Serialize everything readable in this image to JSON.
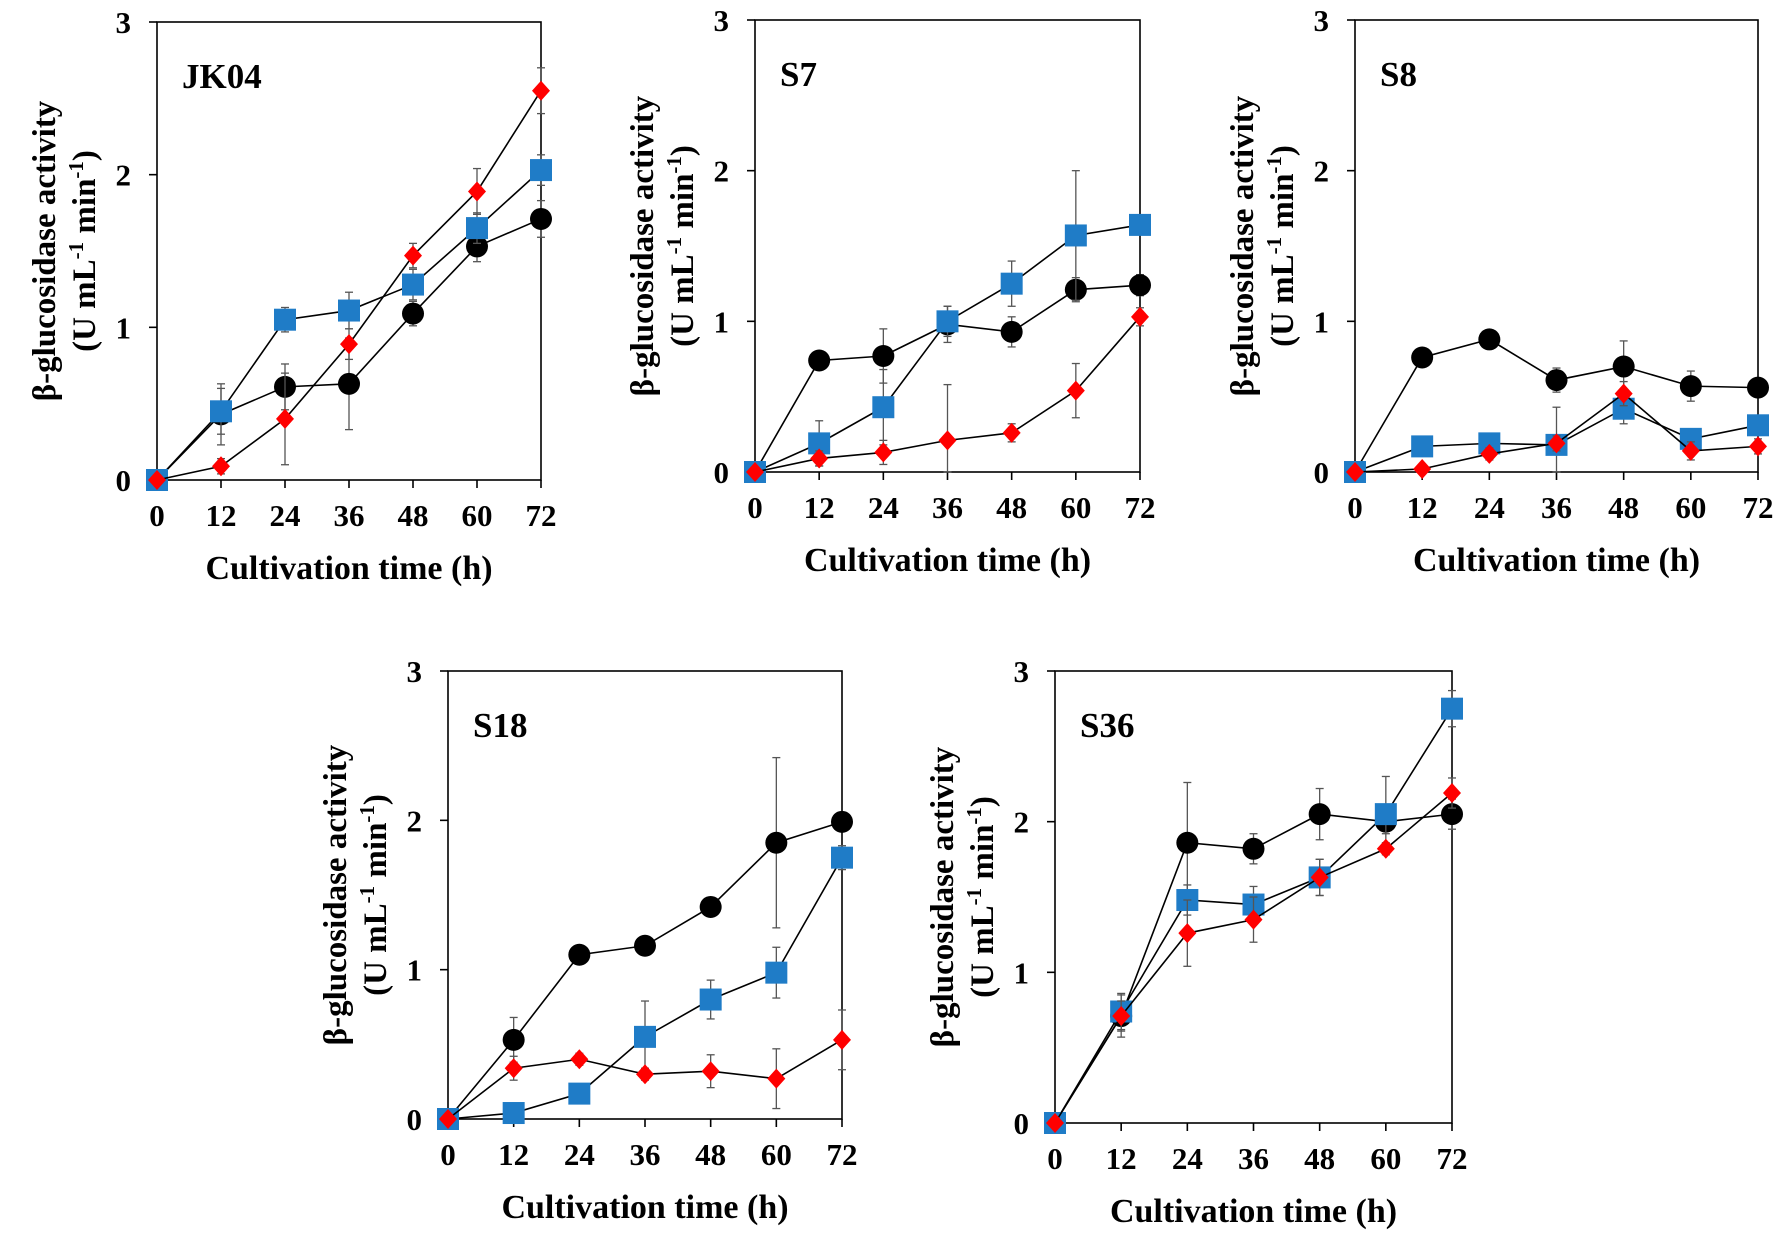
{
  "figure": {
    "y_axis_label_line1": "β-glucosidase activity",
    "y_axis_label_line2_prefix": "(U mL",
    "y_axis_label_line2_sup1": "-1",
    "y_axis_label_line2_mid": " min",
    "y_axis_label_line2_sup2": "-1",
    "y_axis_label_line2_suffix": ")",
    "x_axis_label": "Cultivation time (h)"
  },
  "colors": {
    "black_series": "#000000",
    "blue_series": "#1f7cc7",
    "red_series": "#ff0000",
    "axis": "#000000",
    "error_bar": "#555555"
  },
  "chart_data": [
    {
      "type": "line",
      "title": "JK04",
      "xlabel": "Cultivation time (h)",
      "ylabel": "β-glucosidase activity (U mL-1 min-1)",
      "x": [
        0,
        12,
        24,
        36,
        48,
        60,
        72
      ],
      "xticks": [
        "0",
        "12",
        "24",
        "36",
        "48",
        "60",
        "72"
      ],
      "yticks": [
        "0",
        "1",
        "2",
        "3"
      ],
      "xlim": [
        0,
        72
      ],
      "ylim": [
        0,
        3
      ],
      "series": [
        {
          "name": "black-circle",
          "marker": "circle",
          "color": "#000000",
          "values": [
            0,
            0.43,
            0.61,
            0.63,
            1.09,
            1.53,
            1.71
          ],
          "errors": [
            0,
            0.2,
            0.15,
            0.3,
            0.08,
            0.1,
            0.12
          ]
        },
        {
          "name": "blue-square",
          "marker": "square",
          "color": "#1f7cc7",
          "values": [
            0,
            0.45,
            1.05,
            1.11,
            1.28,
            1.65,
            2.03
          ],
          "errors": [
            0,
            0.15,
            0.08,
            0.12,
            0.1,
            0.1,
            0.1
          ]
        },
        {
          "name": "red-diamond",
          "marker": "diamond",
          "color": "#ff0000",
          "values": [
            0,
            0.09,
            0.4,
            0.89,
            1.47,
            1.89,
            2.55
          ],
          "errors": [
            0,
            0.05,
            0.3,
            0.1,
            0.08,
            0.15,
            0.15
          ]
        }
      ]
    },
    {
      "type": "line",
      "title": "S7",
      "xlabel": "Cultivation time (h)",
      "ylabel": "β-glucosidase activity (U mL-1 min-1)",
      "x": [
        0,
        12,
        24,
        36,
        48,
        60,
        72
      ],
      "xticks": [
        "0",
        "12",
        "24",
        "36",
        "48",
        "60",
        "72"
      ],
      "yticks": [
        "0",
        "1",
        "2",
        "3"
      ],
      "xlim": [
        0,
        72
      ],
      "ylim": [
        0,
        3
      ],
      "series": [
        {
          "name": "black-circle",
          "marker": "circle",
          "color": "#000000",
          "values": [
            0,
            0.74,
            0.77,
            0.98,
            0.93,
            1.21,
            1.24
          ],
          "errors": [
            0,
            0.06,
            0.18,
            0.12,
            0.1,
            0.08,
            0.07
          ]
        },
        {
          "name": "blue-square",
          "marker": "square",
          "color": "#1f7cc7",
          "values": [
            0,
            0.19,
            0.43,
            1.0,
            1.25,
            1.57,
            1.64
          ],
          "errors": [
            0,
            0.15,
            0.25,
            0.1,
            0.15,
            0.43,
            0.06
          ]
        },
        {
          "name": "red-diamond",
          "marker": "diamond",
          "color": "#ff0000",
          "values": [
            0,
            0.09,
            0.13,
            0.21,
            0.26,
            0.54,
            1.03
          ],
          "errors": [
            0,
            0.05,
            0.08,
            0.37,
            0.06,
            0.18,
            0.06
          ]
        }
      ]
    },
    {
      "type": "line",
      "title": "S8",
      "xlabel": "Cultivation time (h)",
      "ylabel": "β-glucosidase activity (U mL-1 min-1)",
      "x": [
        0,
        12,
        24,
        36,
        48,
        60,
        72
      ],
      "xticks": [
        "0",
        "12",
        "24",
        "36",
        "48",
        "60",
        "72"
      ],
      "yticks": [
        "0",
        "1",
        "2",
        "3"
      ],
      "xlim": [
        0,
        72
      ],
      "ylim": [
        0,
        3
      ],
      "series": [
        {
          "name": "black-circle",
          "marker": "circle",
          "color": "#000000",
          "values": [
            0,
            0.76,
            0.88,
            0.61,
            0.7,
            0.57,
            0.56
          ],
          "errors": [
            0,
            0.06,
            0.04,
            0.08,
            0.17,
            0.1,
            0.05
          ]
        },
        {
          "name": "blue-square",
          "marker": "square",
          "color": "#1f7cc7",
          "values": [
            0,
            0.17,
            0.19,
            0.18,
            0.42,
            0.22,
            0.31
          ],
          "errors": [
            0,
            0.06,
            0.04,
            0.25,
            0.1,
            0.06,
            0.05
          ]
        },
        {
          "name": "red-diamond",
          "marker": "diamond",
          "color": "#ff0000",
          "values": [
            0,
            0.02,
            0.12,
            0.19,
            0.52,
            0.14,
            0.17
          ],
          "errors": [
            0,
            0.02,
            0.04,
            0.05,
            0.08,
            0.06,
            0.05
          ]
        }
      ]
    },
    {
      "type": "line",
      "title": "S18",
      "xlabel": "Cultivation time (h)",
      "ylabel": "β-glucosidase activity (U mL-1 min-1)",
      "x": [
        0,
        12,
        24,
        36,
        48,
        60,
        72
      ],
      "xticks": [
        "0",
        "12",
        "24",
        "36",
        "48",
        "60",
        "72"
      ],
      "yticks": [
        "0",
        "1",
        "2",
        "3"
      ],
      "xlim": [
        0,
        72
      ],
      "ylim": [
        0,
        3
      ],
      "series": [
        {
          "name": "black-circle",
          "marker": "circle",
          "color": "#000000",
          "values": [
            0,
            0.53,
            1.1,
            1.16,
            1.42,
            1.85,
            1.99
          ],
          "errors": [
            0,
            0.15,
            0.06,
            0.04,
            0.04,
            0.57,
            0.04
          ]
        },
        {
          "name": "blue-square",
          "marker": "square",
          "color": "#1f7cc7",
          "values": [
            0,
            0.04,
            0.17,
            0.55,
            0.8,
            0.98,
            1.75
          ],
          "errors": [
            0,
            0.02,
            0.03,
            0.24,
            0.13,
            0.17,
            0.08
          ]
        },
        {
          "name": "red-diamond",
          "marker": "diamond",
          "color": "#ff0000",
          "values": [
            0,
            0.34,
            0.4,
            0.3,
            0.32,
            0.27,
            0.53
          ],
          "errors": [
            0,
            0.08,
            0.04,
            0.04,
            0.11,
            0.2,
            0.2
          ]
        }
      ]
    },
    {
      "type": "line",
      "title": "S36",
      "xlabel": "Cultivation time (h)",
      "ylabel": "β-glucosidase activity (U mL-1 min-1)",
      "x": [
        0,
        12,
        24,
        36,
        48,
        60,
        72
      ],
      "xticks": [
        "0",
        "12",
        "24",
        "36",
        "48",
        "60",
        "72"
      ],
      "yticks": [
        "0",
        "1",
        "2",
        "3"
      ],
      "xlim": [
        0,
        72
      ],
      "ylim": [
        0,
        3
      ],
      "series": [
        {
          "name": "black-circle",
          "marker": "circle",
          "color": "#000000",
          "values": [
            0,
            0.71,
            1.86,
            1.82,
            2.05,
            2.0,
            2.05
          ],
          "errors": [
            0,
            0.14,
            0.4,
            0.1,
            0.17,
            0.08,
            0.1
          ]
        },
        {
          "name": "blue-square",
          "marker": "square",
          "color": "#1f7cc7",
          "values": [
            0,
            0.74,
            1.48,
            1.45,
            1.63,
            2.05,
            2.75
          ],
          "errors": [
            0,
            0.12,
            0.1,
            0.12,
            0.12,
            0.25,
            0.12
          ]
        },
        {
          "name": "red-diamond",
          "marker": "diamond",
          "color": "#ff0000",
          "values": [
            0,
            0.71,
            1.26,
            1.35,
            1.63,
            1.82,
            2.19
          ],
          "errors": [
            0,
            0.1,
            0.22,
            0.15,
            0.12,
            0.04,
            0.1
          ]
        }
      ]
    }
  ]
}
